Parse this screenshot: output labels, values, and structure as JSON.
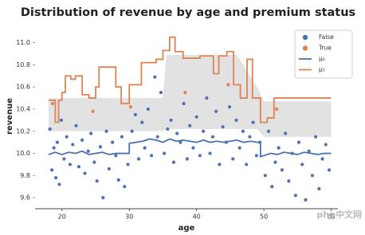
{
  "chart_data": {
    "type": "scatter-line",
    "title": "Distribution of revenue by age and premium status",
    "x_label": "age",
    "y_label": "revenue",
    "xlim": [
      16,
      61
    ],
    "xticks": [
      20,
      30,
      40,
      50,
      60
    ],
    "ylim": [
      9.5,
      11.17
    ],
    "yticks": [
      9.6,
      9.8,
      {
        "value": 10,
        "label": "10.0"
      },
      10.2,
      10.4,
      10.6,
      10.8,
      {
        "value": 11,
        "label": "11.0"
      }
    ],
    "legend": "upper right",
    "band": {
      "color": "#e2e2e2",
      "x": [
        18,
        35,
        35.5,
        46,
        49,
        50,
        60
      ],
      "upper": [
        10.5,
        10.5,
        10.89,
        10.89,
        10.6,
        10.47,
        10.47
      ],
      "lower": [
        10.2,
        10.2,
        10.22,
        10.22,
        10.22,
        10.15,
        10.15
      ]
    },
    "series": [
      {
        "name": "False",
        "kind": "scatter",
        "color": "#4c72b0",
        "x": [
          18.2,
          18.5,
          18.8,
          19.1,
          19.3,
          19.6,
          19.9,
          20.3,
          20.7,
          21.2,
          21.6,
          22.1,
          22.5,
          23.0,
          23.4,
          23.9,
          24.3,
          24.8,
          25.2,
          25.7,
          26.1,
          26.6,
          27.0,
          27.5,
          28.0,
          28.4,
          28.9,
          29.3,
          29.8,
          30.4,
          30.9,
          31.4,
          31.9,
          32.3,
          32.8,
          33.3,
          33.8,
          34.2,
          34.7,
          35.2,
          35.7,
          36.2,
          36.6,
          37.1,
          37.6,
          38.1,
          38.6,
          39.0,
          39.5,
          40.0,
          40.5,
          41.0,
          41.5,
          42.0,
          42.4,
          42.9,
          43.4,
          43.9,
          44.4,
          44.9,
          45.4,
          45.9,
          46.4,
          46.9,
          47.4,
          47.9,
          48.4,
          48.9,
          49.4,
          50.2,
          50.7,
          51.2,
          51.7,
          52.2,
          52.7,
          53.2,
          53.7,
          54.2,
          54.7,
          55.2,
          55.7,
          56.2,
          56.7,
          57.2,
          57.7,
          58.2,
          58.7,
          59.2,
          59.7
        ],
        "values": [
          10.22,
          9.85,
          10.05,
          9.78,
          10.1,
          9.72,
          10.3,
          9.95,
          10.15,
          9.9,
          10.08,
          10.25,
          9.88,
          10.12,
          9.82,
          10.02,
          10.18,
          9.92,
          9.75,
          10.06,
          9.6,
          10.2,
          9.86,
          10.1,
          9.98,
          9.76,
          10.15,
          9.7,
          9.9,
          10.2,
          10.35,
          9.95,
          10.28,
          10.05,
          10.4,
          9.98,
          10.69,
          10.15,
          10.55,
          10.0,
          10.22,
          10.3,
          9.92,
          10.18,
          10.1,
          10.45,
          9.95,
          10.25,
          10.05,
          10.33,
          9.98,
          10.2,
          10.5,
          10.0,
          10.15,
          10.38,
          9.9,
          10.24,
          10.1,
          10.42,
          9.95,
          10.3,
          10.05,
          10.2,
          9.9,
          10.15,
          10.28,
          9.98,
          10.1,
          9.8,
          10.2,
          9.7,
          9.92,
          10.05,
          9.85,
          10.18,
          9.75,
          10.0,
          9.62,
          10.1,
          9.9,
          9.58,
          10.02,
          9.8,
          10.15,
          9.68,
          9.95,
          10.08,
          9.85
        ]
      },
      {
        "name": "True",
        "kind": "scatter",
        "color": "#dd8452",
        "x": [
          18.6,
          24.6,
          30.2,
          38.3,
          44.7,
          51.9
        ],
        "values": [
          10.45,
          10.38,
          10.42,
          10.55,
          10.62,
          10.4
        ]
      },
      {
        "name": "μ₀",
        "kind": "line",
        "color": "#4c72b0",
        "x": [
          18,
          19,
          20,
          21,
          22,
          23,
          24,
          25,
          26,
          27,
          28,
          29,
          30,
          30,
          31,
          32,
          33,
          34,
          35,
          36,
          37,
          38,
          39,
          40,
          41,
          42,
          43,
          44,
          45,
          46,
          47,
          48,
          49,
          49.5,
          49.5,
          50,
          51,
          52,
          53,
          54,
          55,
          56,
          57,
          58,
          59,
          60
        ],
        "values": [
          9.99,
          10.01,
          9.99,
          10.01,
          10.0,
          10.02,
          9.99,
          10.0,
          10.01,
          9.99,
          10.0,
          10.0,
          10.0,
          10.09,
          10.1,
          10.11,
          10.13,
          10.12,
          10.1,
          10.13,
          10.11,
          10.12,
          10.11,
          10.1,
          10.12,
          10.1,
          10.11,
          10.1,
          10.11,
          10.12,
          10.1,
          10.11,
          10.1,
          10.1,
          9.97,
          9.98,
          10.0,
          9.99,
          10.01,
          10.0,
          9.99,
          10.01,
          10.0,
          9.99,
          10.0,
          10.0
        ]
      },
      {
        "name": "μ₁",
        "kind": "line",
        "color": "#dd8452",
        "x": [
          18,
          19,
          19,
          19.5,
          19.5,
          20,
          20,
          20.5,
          20.5,
          21.3,
          21.3,
          22,
          22,
          23,
          23,
          24,
          24,
          25,
          25,
          25.5,
          25.5,
          28,
          28,
          28.8,
          28.8,
          30,
          30,
          31.8,
          31.8,
          34,
          34,
          35,
          35,
          36,
          36,
          36.8,
          36.8,
          38,
          38,
          40.5,
          40.5,
          42.5,
          42.5,
          43.3,
          43.3,
          44.5,
          44.5,
          45.5,
          45.5,
          46.5,
          46.5,
          47.5,
          47.5,
          48.3,
          48.3,
          49.5,
          49.5,
          50.5,
          50.5,
          51.5,
          51.5,
          60
        ],
        "values": [
          10.48,
          10.48,
          10.28,
          10.28,
          10.48,
          10.48,
          10.55,
          10.55,
          10.7,
          10.7,
          10.67,
          10.67,
          10.7,
          10.7,
          10.53,
          10.53,
          10.5,
          10.5,
          10.6,
          10.6,
          10.78,
          10.78,
          10.6,
          10.6,
          10.45,
          10.45,
          10.62,
          10.62,
          10.82,
          10.82,
          10.85,
          10.85,
          10.93,
          10.93,
          11.05,
          11.05,
          10.92,
          10.92,
          10.86,
          10.86,
          10.88,
          10.88,
          10.72,
          10.72,
          10.88,
          10.88,
          10.92,
          10.92,
          10.62,
          10.62,
          10.5,
          10.5,
          10.85,
          10.85,
          10.5,
          10.5,
          10.28,
          10.28,
          10.32,
          10.32,
          10.5,
          10.5
        ]
      }
    ],
    "watermark": "php中文网"
  }
}
